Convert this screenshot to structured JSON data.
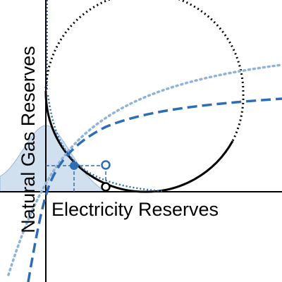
{
  "axes": {
    "x_label": "Electricity Reserves",
    "y_label": "Natural Gas Reserves"
  }
}
